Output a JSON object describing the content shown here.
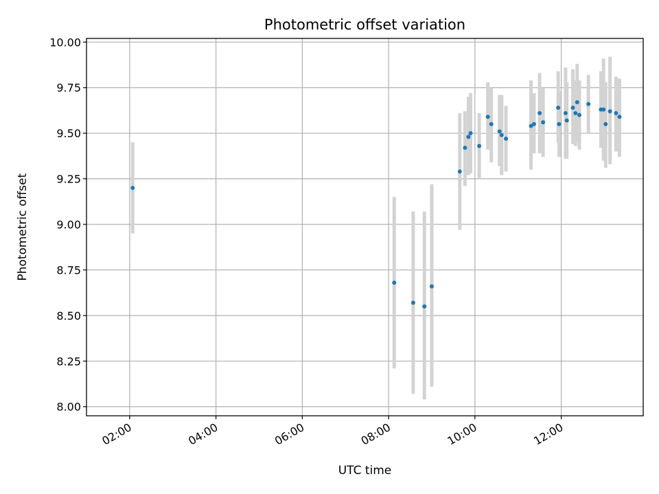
{
  "chart_data": {
    "type": "scatter",
    "title": "Photometric offset variation",
    "xlabel": "UTC time",
    "ylabel": "Photometric offset",
    "xlim_hours": [
      1.0,
      13.9
    ],
    "ylim": [
      7.95,
      10.02
    ],
    "grid": true,
    "x_ticks": [
      {
        "value": 2,
        "label": "02:00"
      },
      {
        "value": 4,
        "label": "04:00"
      },
      {
        "value": 6,
        "label": "06:00"
      },
      {
        "value": 8,
        "label": "08:00"
      },
      {
        "value": 10,
        "label": "10:00"
      },
      {
        "value": 12,
        "label": "12:00"
      }
    ],
    "y_ticks": [
      {
        "value": 8.0,
        "label": "8.00"
      },
      {
        "value": 8.25,
        "label": "8.25"
      },
      {
        "value": 8.5,
        "label": "8.50"
      },
      {
        "value": 8.75,
        "label": "8.75"
      },
      {
        "value": 9.0,
        "label": "9.00"
      },
      {
        "value": 9.25,
        "label": "9.25"
      },
      {
        "value": 9.5,
        "label": "9.50"
      },
      {
        "value": 9.75,
        "label": "9.75"
      },
      {
        "value": 10.0,
        "label": "10.00"
      }
    ],
    "series": [
      {
        "name": "Photometric offset",
        "color": "#1f77b4",
        "errorbar_color": "#d3d3d3",
        "points": [
          {
            "x": 2.07,
            "y": 9.2,
            "lo": 8.95,
            "hi": 9.45
          },
          {
            "x": 8.13,
            "y": 8.68,
            "lo": 8.21,
            "hi": 9.15
          },
          {
            "x": 8.57,
            "y": 8.57,
            "lo": 8.07,
            "hi": 9.07
          },
          {
            "x": 8.83,
            "y": 8.55,
            "lo": 8.04,
            "hi": 9.07
          },
          {
            "x": 9.0,
            "y": 8.66,
            "lo": 8.11,
            "hi": 9.22
          },
          {
            "x": 9.65,
            "y": 9.29,
            "lo": 8.97,
            "hi": 9.61
          },
          {
            "x": 9.77,
            "y": 9.42,
            "lo": 9.21,
            "hi": 9.62
          },
          {
            "x": 9.85,
            "y": 9.48,
            "lo": 9.27,
            "hi": 9.7
          },
          {
            "x": 9.9,
            "y": 9.5,
            "lo": 9.28,
            "hi": 9.72
          },
          {
            "x": 10.1,
            "y": 9.43,
            "lo": 9.25,
            "hi": 9.61
          },
          {
            "x": 10.3,
            "y": 9.59,
            "lo": 9.41,
            "hi": 9.78
          },
          {
            "x": 10.38,
            "y": 9.55,
            "lo": 9.34,
            "hi": 9.75
          },
          {
            "x": 10.57,
            "y": 9.51,
            "lo": 9.32,
            "hi": 9.71
          },
          {
            "x": 10.62,
            "y": 9.49,
            "lo": 9.27,
            "hi": 9.71
          },
          {
            "x": 10.72,
            "y": 9.47,
            "lo": 9.29,
            "hi": 9.65
          },
          {
            "x": 11.3,
            "y": 9.54,
            "lo": 9.3,
            "hi": 9.79
          },
          {
            "x": 11.37,
            "y": 9.55,
            "lo": 9.39,
            "hi": 9.72
          },
          {
            "x": 11.5,
            "y": 9.61,
            "lo": 9.39,
            "hi": 9.83
          },
          {
            "x": 11.58,
            "y": 9.56,
            "lo": 9.37,
            "hi": 9.75
          },
          {
            "x": 11.93,
            "y": 9.64,
            "lo": 9.45,
            "hi": 9.84
          },
          {
            "x": 11.95,
            "y": 9.55,
            "lo": 9.37,
            "hi": 9.73
          },
          {
            "x": 12.1,
            "y": 9.61,
            "lo": 9.36,
            "hi": 9.86
          },
          {
            "x": 12.13,
            "y": 9.57,
            "lo": 9.36,
            "hi": 9.78
          },
          {
            "x": 12.27,
            "y": 9.64,
            "lo": 9.44,
            "hi": 9.85
          },
          {
            "x": 12.33,
            "y": 9.61,
            "lo": 9.43,
            "hi": 9.79
          },
          {
            "x": 12.37,
            "y": 9.67,
            "lo": 9.45,
            "hi": 9.88
          },
          {
            "x": 12.42,
            "y": 9.6,
            "lo": 9.41,
            "hi": 9.79
          },
          {
            "x": 12.63,
            "y": 9.66,
            "lo": 9.5,
            "hi": 9.82
          },
          {
            "x": 12.92,
            "y": 9.63,
            "lo": 9.42,
            "hi": 9.84
          },
          {
            "x": 12.98,
            "y": 9.63,
            "lo": 9.35,
            "hi": 9.91
          },
          {
            "x": 13.03,
            "y": 9.55,
            "lo": 9.31,
            "hi": 9.78
          },
          {
            "x": 13.13,
            "y": 9.62,
            "lo": 9.33,
            "hi": 9.92
          },
          {
            "x": 13.27,
            "y": 9.61,
            "lo": 9.4,
            "hi": 9.81
          },
          {
            "x": 13.35,
            "y": 9.59,
            "lo": 9.37,
            "hi": 9.8
          }
        ]
      }
    ]
  }
}
